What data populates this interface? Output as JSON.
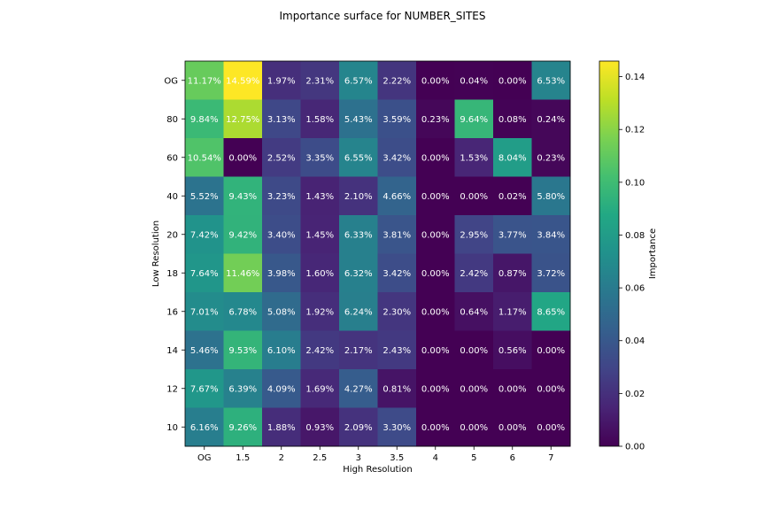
{
  "chart_data": {
    "type": "heatmap",
    "title": "Importance surface for NUMBER_SITES",
    "xlabel": "High Resolution",
    "ylabel": "Low Resolution",
    "x_categories": [
      "OG",
      "1.5",
      "2",
      "2.5",
      "3",
      "3.5",
      "4",
      "5",
      "6",
      "7"
    ],
    "y_categories": [
      "OG",
      "80",
      "60",
      "40",
      "20",
      "18",
      "16",
      "14",
      "12",
      "10"
    ],
    "values": [
      [
        0.1117,
        0.1459,
        0.0197,
        0.0231,
        0.0657,
        0.0222,
        0.0,
        0.0004,
        0.0,
        0.0653
      ],
      [
        0.0984,
        0.1275,
        0.0313,
        0.0158,
        0.0543,
        0.0359,
        0.0023,
        0.0964,
        0.0008,
        0.0024
      ],
      [
        0.1054,
        0.0,
        0.0252,
        0.0335,
        0.0655,
        0.0342,
        0.0,
        0.0153,
        0.0804,
        0.0023
      ],
      [
        0.0552,
        0.0943,
        0.0323,
        0.0143,
        0.021,
        0.0466,
        0.0,
        0.0,
        0.0002,
        0.058
      ],
      [
        0.0742,
        0.0942,
        0.034,
        0.0145,
        0.0633,
        0.0381,
        0.0,
        0.0295,
        0.0377,
        0.0384
      ],
      [
        0.0764,
        0.1146,
        0.0398,
        0.016,
        0.0632,
        0.0342,
        0.0,
        0.0242,
        0.0087,
        0.0372
      ],
      [
        0.0701,
        0.0678,
        0.0508,
        0.0192,
        0.0624,
        0.023,
        0.0,
        0.0064,
        0.0117,
        0.0865
      ],
      [
        0.0546,
        0.0953,
        0.061,
        0.0242,
        0.0217,
        0.0243,
        0.0,
        0.0,
        0.0056,
        0.0
      ],
      [
        0.0767,
        0.0639,
        0.0409,
        0.0169,
        0.0427,
        0.0081,
        0.0,
        0.0,
        0.0,
        0.0
      ],
      [
        0.0616,
        0.0926,
        0.0188,
        0.0093,
        0.0209,
        0.033,
        0.0,
        0.0,
        0.0,
        0.0
      ]
    ],
    "cell_labels": [
      [
        "11.17%",
        "14.59%",
        "1.97%",
        "2.31%",
        "6.57%",
        "2.22%",
        "0.00%",
        "0.04%",
        "0.00%",
        "6.53%"
      ],
      [
        "9.84%",
        "12.75%",
        "3.13%",
        "1.58%",
        "5.43%",
        "3.59%",
        "0.23%",
        "9.64%",
        "0.08%",
        "0.24%"
      ],
      [
        "10.54%",
        "0.00%",
        "2.52%",
        "3.35%",
        "6.55%",
        "3.42%",
        "0.00%",
        "1.53%",
        "8.04%",
        "0.23%"
      ],
      [
        "5.52%",
        "9.43%",
        "3.23%",
        "1.43%",
        "2.10%",
        "4.66%",
        "0.00%",
        "0.00%",
        "0.02%",
        "5.80%"
      ],
      [
        "7.42%",
        "9.42%",
        "3.40%",
        "1.45%",
        "6.33%",
        "3.81%",
        "0.00%",
        "2.95%",
        "3.77%",
        "3.84%"
      ],
      [
        "7.64%",
        "11.46%",
        "3.98%",
        "1.60%",
        "6.32%",
        "3.42%",
        "0.00%",
        "2.42%",
        "0.87%",
        "3.72%"
      ],
      [
        "7.01%",
        "6.78%",
        "5.08%",
        "1.92%",
        "6.24%",
        "2.30%",
        "0.00%",
        "0.64%",
        "1.17%",
        "8.65%"
      ],
      [
        "5.46%",
        "9.53%",
        "6.10%",
        "2.42%",
        "2.17%",
        "2.43%",
        "0.00%",
        "0.00%",
        "0.56%",
        "0.00%"
      ],
      [
        "7.67%",
        "6.39%",
        "4.09%",
        "1.69%",
        "4.27%",
        "0.81%",
        "0.00%",
        "0.00%",
        "0.00%",
        "0.00%"
      ],
      [
        "6.16%",
        "9.26%",
        "1.88%",
        "0.93%",
        "2.09%",
        "3.30%",
        "0.00%",
        "0.00%",
        "0.00%",
        "0.00%"
      ]
    ],
    "colorbar": {
      "label": "Importance",
      "range": [
        0.0,
        0.1459
      ],
      "ticks": [
        0.0,
        0.02,
        0.04,
        0.06,
        0.08,
        0.1,
        0.12,
        0.14
      ],
      "tick_labels": [
        "0.00",
        "0.02",
        "0.04",
        "0.06",
        "0.08",
        "0.10",
        "0.12",
        "0.14"
      ]
    },
    "colormap": "viridis",
    "grid": false
  }
}
